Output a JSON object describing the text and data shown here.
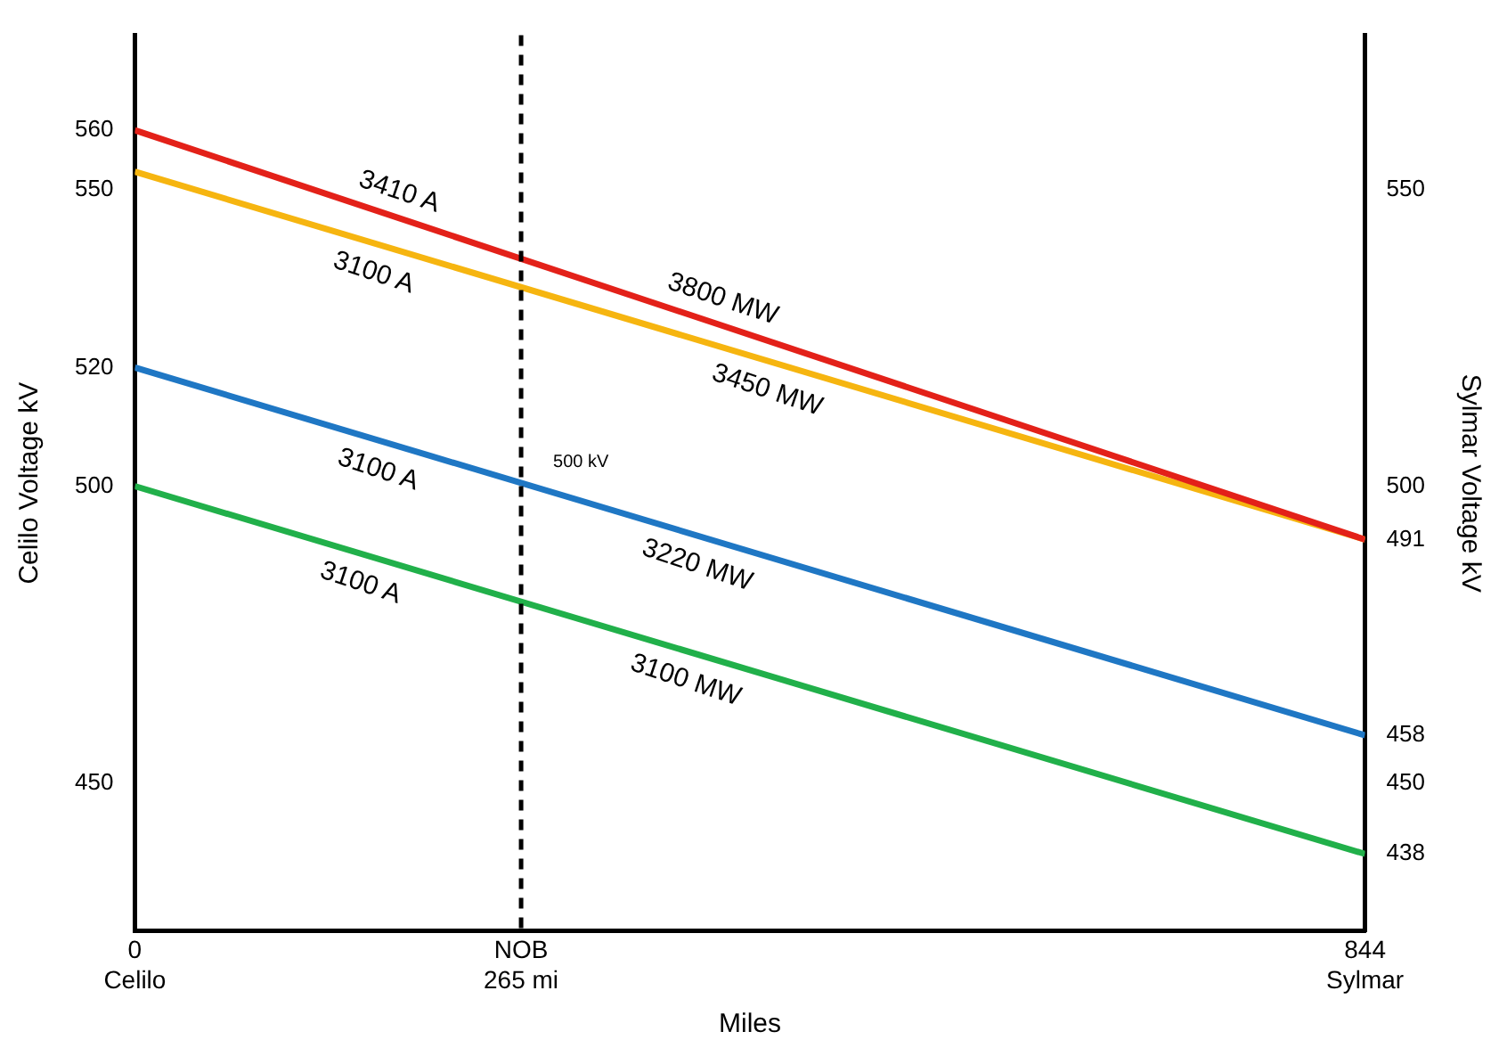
{
  "chart_data": {
    "type": "line",
    "xlabel": "Miles",
    "ylabel": "Celilo Voltage kV",
    "y2label": "Sylmar Voltage kV",
    "xlim": [
      0,
      844
    ],
    "xticks": [
      {
        "value": 0,
        "label": "0\nCelilo"
      },
      {
        "value": 265,
        "label": "NOB\n265 mi"
      },
      {
        "value": 844,
        "label": "844\nSylmar"
      }
    ],
    "ylim": [
      425,
      576
    ],
    "yticks": [
      450,
      500,
      520,
      550,
      560
    ],
    "y2lim": [
      425,
      576
    ],
    "y2ticks": [
      438,
      450,
      458,
      491,
      500,
      550
    ],
    "grid": false,
    "legend": false,
    "marker": "none",
    "line_style": "solid",
    "x": [
      0,
      844
    ],
    "series": [
      {
        "color": "#e32119",
        "values": [
          560,
          491
        ]
      },
      {
        "color": "#f6b510",
        "values": [
          553,
          491
        ]
      },
      {
        "color": "#1f77c4",
        "values": [
          520,
          458
        ]
      },
      {
        "color": "#21b04a",
        "values": [
          500,
          438
        ]
      }
    ],
    "ref_lines": [
      {
        "axis": "x",
        "value": 265,
        "label": "500 kV",
        "color": "#000000",
        "line_style": "dashed"
      }
    ],
    "annotations": [
      {
        "text": "3410 A",
        "x": 176,
        "y": 545.6
      },
      {
        "text": "3800 MW",
        "x": 398,
        "y": 527.5
      },
      {
        "text": "3100 A",
        "x": 170,
        "y": 540.5
      },
      {
        "text": "3450 MW",
        "x": 440,
        "y": 520.7
      },
      {
        "text": "3100 A",
        "x": 173,
        "y": 507.3
      },
      {
        "text": "3220 MW",
        "x": 392,
        "y": 491.2
      },
      {
        "text": "3100 A",
        "x": 161,
        "y": 488.2
      },
      {
        "text": "3100 MW",
        "x": 384,
        "y": 471.8
      }
    ]
  }
}
